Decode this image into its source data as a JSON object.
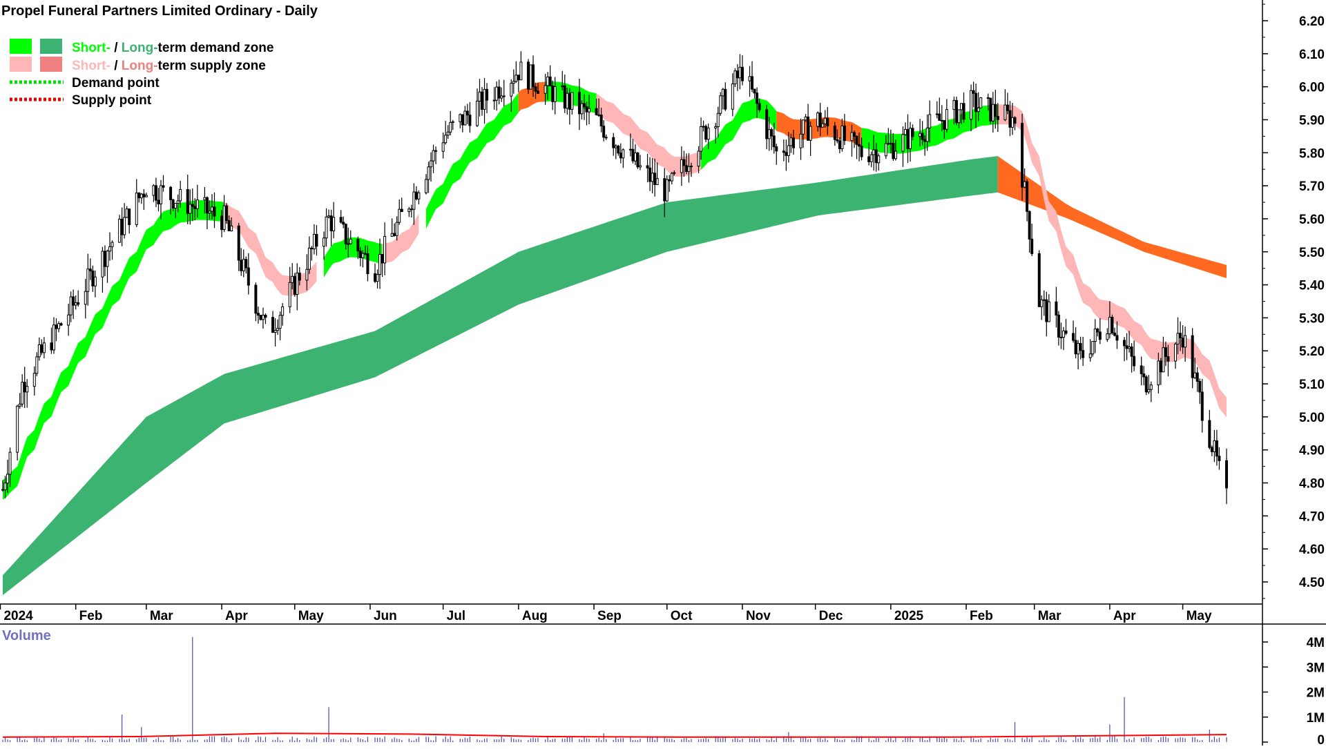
{
  "chart_data": [
    {
      "type": "candlestick",
      "title": "Propel Funeral Partners Limited Ordinary - Daily",
      "xlabel": "",
      "ylabel": "",
      "ylim": [
        4.4,
        6.25
      ],
      "grid": false,
      "y_ticks": [
        "6.20",
        "6.10",
        "6.00",
        "5.90",
        "5.80",
        "5.70",
        "5.60",
        "5.50",
        "5.40",
        "5.30",
        "5.20",
        "5.10",
        "5.00",
        "4.90",
        "4.80",
        "4.70",
        "4.60",
        "4.50"
      ],
      "x_ticks": [
        "2024",
        "Feb",
        "Mar",
        "Apr",
        "May",
        "Jun",
        "Jul",
        "Aug",
        "Sep",
        "Oct",
        "Nov",
        "Dec",
        "2025",
        "Feb",
        "Mar",
        "Apr",
        "May"
      ],
      "legend": {
        "placement": "top-left",
        "rows": [
          {
            "part1": "Short-",
            "sep": " / ",
            "part2": "Long-",
            "rest": "term demand zone",
            "color1": "#00ff00",
            "color2": "#3cb371"
          },
          {
            "part1": "Short-",
            "sep": " / ",
            "part2": "Long-",
            "rest": "term supply zone",
            "color1": "#ffb6b6",
            "color2": "#f08080"
          },
          {
            "label": "Demand point",
            "color": "#00dd00"
          },
          {
            "label": "Supply point",
            "color": "#ee0000"
          }
        ]
      },
      "colors": {
        "short_demand": "#00ff00",
        "long_demand": "#3cb371",
        "short_supply": "#ffb6b6",
        "long_supply": "#f08080",
        "zone_crossover": "#ff6a20",
        "candle": "#000000"
      },
      "price_path_approx": {
        "dates": [
          "2024-01-02",
          "2024-01-10",
          "2024-02-01",
          "2024-03-01",
          "2024-04-02",
          "2024-04-20",
          "2024-05-15",
          "2024-06-03",
          "2024-07-01",
          "2024-08-01",
          "2024-09-02",
          "2024-09-20",
          "2024-10-01",
          "2024-11-01",
          "2024-11-15",
          "2024-12-02",
          "2024-12-20",
          "2025-01-02",
          "2025-02-03",
          "2025-02-21",
          "2025-03-03",
          "2025-03-20",
          "2025-04-01",
          "2025-04-15",
          "2025-05-01",
          "2025-05-19"
        ],
        "close": [
          4.78,
          5.1,
          5.35,
          5.7,
          5.6,
          5.25,
          5.6,
          5.45,
          5.85,
          6.05,
          5.9,
          5.75,
          5.68,
          6.05,
          5.8,
          5.9,
          5.8,
          5.82,
          5.95,
          5.9,
          5.35,
          5.18,
          5.3,
          5.1,
          5.25,
          4.75
        ]
      },
      "long_term_demand_zone_approx": {
        "dates": [
          "2024-01-02",
          "2024-03-01",
          "2024-04-02",
          "2024-06-03",
          "2024-08-01",
          "2024-10-01",
          "2024-12-02",
          "2025-02-03",
          "2025-02-14"
        ],
        "upper": [
          4.52,
          5.0,
          5.13,
          5.26,
          5.5,
          5.65,
          5.71,
          5.78,
          5.79
        ],
        "lower": [
          4.46,
          4.8,
          4.98,
          5.12,
          5.34,
          5.5,
          5.61,
          5.67,
          5.68
        ]
      },
      "long_term_supply_zone_approx": {
        "dates": [
          "2025-02-14",
          "2025-03-15",
          "2025-04-15",
          "2025-05-19"
        ],
        "upper": [
          5.79,
          5.64,
          5.53,
          5.46
        ],
        "lower": [
          5.68,
          5.6,
          5.5,
          5.42
        ]
      }
    },
    {
      "type": "bar",
      "title": "Volume",
      "ylim": [
        0,
        4500000
      ],
      "y_ticks": [
        "4M",
        "3M",
        "2M",
        "1M",
        "0"
      ],
      "notable_spikes": [
        {
          "period": "2024 Mar",
          "value": 4200000
        },
        {
          "period": "2024 Feb",
          "value": 1100000
        },
        {
          "period": "2024 May",
          "value": 1400000
        },
        {
          "period": "2025 Apr",
          "value": 1800000
        }
      ],
      "average_line_approx": [
        200000,
        220000,
        350000,
        320000,
        220000,
        200000,
        200000,
        200000,
        250000,
        300000
      ],
      "colors": {
        "bars": "#4a4ab0",
        "average": "#ff0000"
      }
    }
  ]
}
